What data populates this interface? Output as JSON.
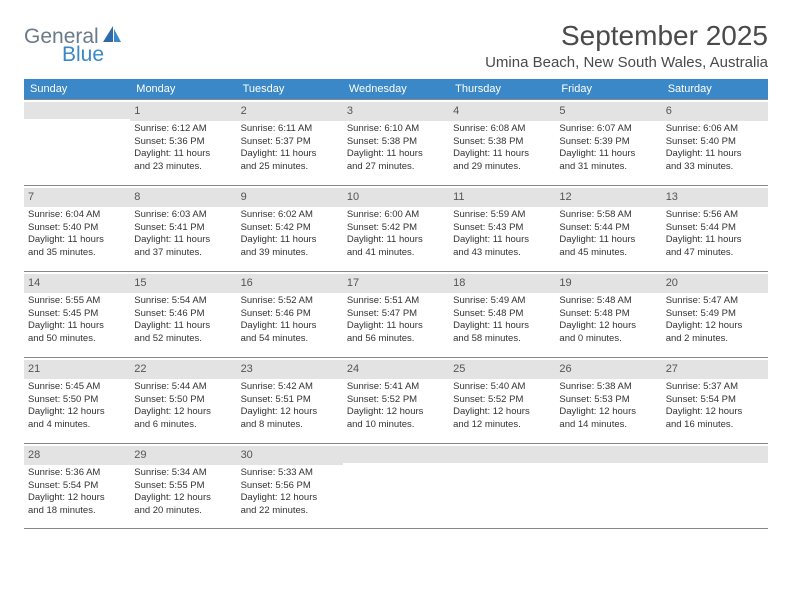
{
  "logo": {
    "general": "General",
    "blue": "Blue"
  },
  "header": {
    "month_title": "September 2025",
    "location": "Umina Beach, New South Wales, Australia"
  },
  "colors": {
    "header_bar": "#3a88c7",
    "day_num_bg": "#e3e3e3",
    "border": "#888888",
    "text": "#333333",
    "logo_gray": "#6b7a8a",
    "logo_blue": "#3a88c7"
  },
  "weekdays": [
    "Sunday",
    "Monday",
    "Tuesday",
    "Wednesday",
    "Thursday",
    "Friday",
    "Saturday"
  ],
  "weeks": [
    [
      null,
      {
        "n": "1",
        "sr": "Sunrise: 6:12 AM",
        "ss": "Sunset: 5:36 PM",
        "d1": "Daylight: 11 hours",
        "d2": "and 23 minutes."
      },
      {
        "n": "2",
        "sr": "Sunrise: 6:11 AM",
        "ss": "Sunset: 5:37 PM",
        "d1": "Daylight: 11 hours",
        "d2": "and 25 minutes."
      },
      {
        "n": "3",
        "sr": "Sunrise: 6:10 AM",
        "ss": "Sunset: 5:38 PM",
        "d1": "Daylight: 11 hours",
        "d2": "and 27 minutes."
      },
      {
        "n": "4",
        "sr": "Sunrise: 6:08 AM",
        "ss": "Sunset: 5:38 PM",
        "d1": "Daylight: 11 hours",
        "d2": "and 29 minutes."
      },
      {
        "n": "5",
        "sr": "Sunrise: 6:07 AM",
        "ss": "Sunset: 5:39 PM",
        "d1": "Daylight: 11 hours",
        "d2": "and 31 minutes."
      },
      {
        "n": "6",
        "sr": "Sunrise: 6:06 AM",
        "ss": "Sunset: 5:40 PM",
        "d1": "Daylight: 11 hours",
        "d2": "and 33 minutes."
      }
    ],
    [
      {
        "n": "7",
        "sr": "Sunrise: 6:04 AM",
        "ss": "Sunset: 5:40 PM",
        "d1": "Daylight: 11 hours",
        "d2": "and 35 minutes."
      },
      {
        "n": "8",
        "sr": "Sunrise: 6:03 AM",
        "ss": "Sunset: 5:41 PM",
        "d1": "Daylight: 11 hours",
        "d2": "and 37 minutes."
      },
      {
        "n": "9",
        "sr": "Sunrise: 6:02 AM",
        "ss": "Sunset: 5:42 PM",
        "d1": "Daylight: 11 hours",
        "d2": "and 39 minutes."
      },
      {
        "n": "10",
        "sr": "Sunrise: 6:00 AM",
        "ss": "Sunset: 5:42 PM",
        "d1": "Daylight: 11 hours",
        "d2": "and 41 minutes."
      },
      {
        "n": "11",
        "sr": "Sunrise: 5:59 AM",
        "ss": "Sunset: 5:43 PM",
        "d1": "Daylight: 11 hours",
        "d2": "and 43 minutes."
      },
      {
        "n": "12",
        "sr": "Sunrise: 5:58 AM",
        "ss": "Sunset: 5:44 PM",
        "d1": "Daylight: 11 hours",
        "d2": "and 45 minutes."
      },
      {
        "n": "13",
        "sr": "Sunrise: 5:56 AM",
        "ss": "Sunset: 5:44 PM",
        "d1": "Daylight: 11 hours",
        "d2": "and 47 minutes."
      }
    ],
    [
      {
        "n": "14",
        "sr": "Sunrise: 5:55 AM",
        "ss": "Sunset: 5:45 PM",
        "d1": "Daylight: 11 hours",
        "d2": "and 50 minutes."
      },
      {
        "n": "15",
        "sr": "Sunrise: 5:54 AM",
        "ss": "Sunset: 5:46 PM",
        "d1": "Daylight: 11 hours",
        "d2": "and 52 minutes."
      },
      {
        "n": "16",
        "sr": "Sunrise: 5:52 AM",
        "ss": "Sunset: 5:46 PM",
        "d1": "Daylight: 11 hours",
        "d2": "and 54 minutes."
      },
      {
        "n": "17",
        "sr": "Sunrise: 5:51 AM",
        "ss": "Sunset: 5:47 PM",
        "d1": "Daylight: 11 hours",
        "d2": "and 56 minutes."
      },
      {
        "n": "18",
        "sr": "Sunrise: 5:49 AM",
        "ss": "Sunset: 5:48 PM",
        "d1": "Daylight: 11 hours",
        "d2": "and 58 minutes."
      },
      {
        "n": "19",
        "sr": "Sunrise: 5:48 AM",
        "ss": "Sunset: 5:48 PM",
        "d1": "Daylight: 12 hours",
        "d2": "and 0 minutes."
      },
      {
        "n": "20",
        "sr": "Sunrise: 5:47 AM",
        "ss": "Sunset: 5:49 PM",
        "d1": "Daylight: 12 hours",
        "d2": "and 2 minutes."
      }
    ],
    [
      {
        "n": "21",
        "sr": "Sunrise: 5:45 AM",
        "ss": "Sunset: 5:50 PM",
        "d1": "Daylight: 12 hours",
        "d2": "and 4 minutes."
      },
      {
        "n": "22",
        "sr": "Sunrise: 5:44 AM",
        "ss": "Sunset: 5:50 PM",
        "d1": "Daylight: 12 hours",
        "d2": "and 6 minutes."
      },
      {
        "n": "23",
        "sr": "Sunrise: 5:42 AM",
        "ss": "Sunset: 5:51 PM",
        "d1": "Daylight: 12 hours",
        "d2": "and 8 minutes."
      },
      {
        "n": "24",
        "sr": "Sunrise: 5:41 AM",
        "ss": "Sunset: 5:52 PM",
        "d1": "Daylight: 12 hours",
        "d2": "and 10 minutes."
      },
      {
        "n": "25",
        "sr": "Sunrise: 5:40 AM",
        "ss": "Sunset: 5:52 PM",
        "d1": "Daylight: 12 hours",
        "d2": "and 12 minutes."
      },
      {
        "n": "26",
        "sr": "Sunrise: 5:38 AM",
        "ss": "Sunset: 5:53 PM",
        "d1": "Daylight: 12 hours",
        "d2": "and 14 minutes."
      },
      {
        "n": "27",
        "sr": "Sunrise: 5:37 AM",
        "ss": "Sunset: 5:54 PM",
        "d1": "Daylight: 12 hours",
        "d2": "and 16 minutes."
      }
    ],
    [
      {
        "n": "28",
        "sr": "Sunrise: 5:36 AM",
        "ss": "Sunset: 5:54 PM",
        "d1": "Daylight: 12 hours",
        "d2": "and 18 minutes."
      },
      {
        "n": "29",
        "sr": "Sunrise: 5:34 AM",
        "ss": "Sunset: 5:55 PM",
        "d1": "Daylight: 12 hours",
        "d2": "and 20 minutes."
      },
      {
        "n": "30",
        "sr": "Sunrise: 5:33 AM",
        "ss": "Sunset: 5:56 PM",
        "d1": "Daylight: 12 hours",
        "d2": "and 22 minutes."
      },
      null,
      null,
      null,
      null
    ]
  ]
}
